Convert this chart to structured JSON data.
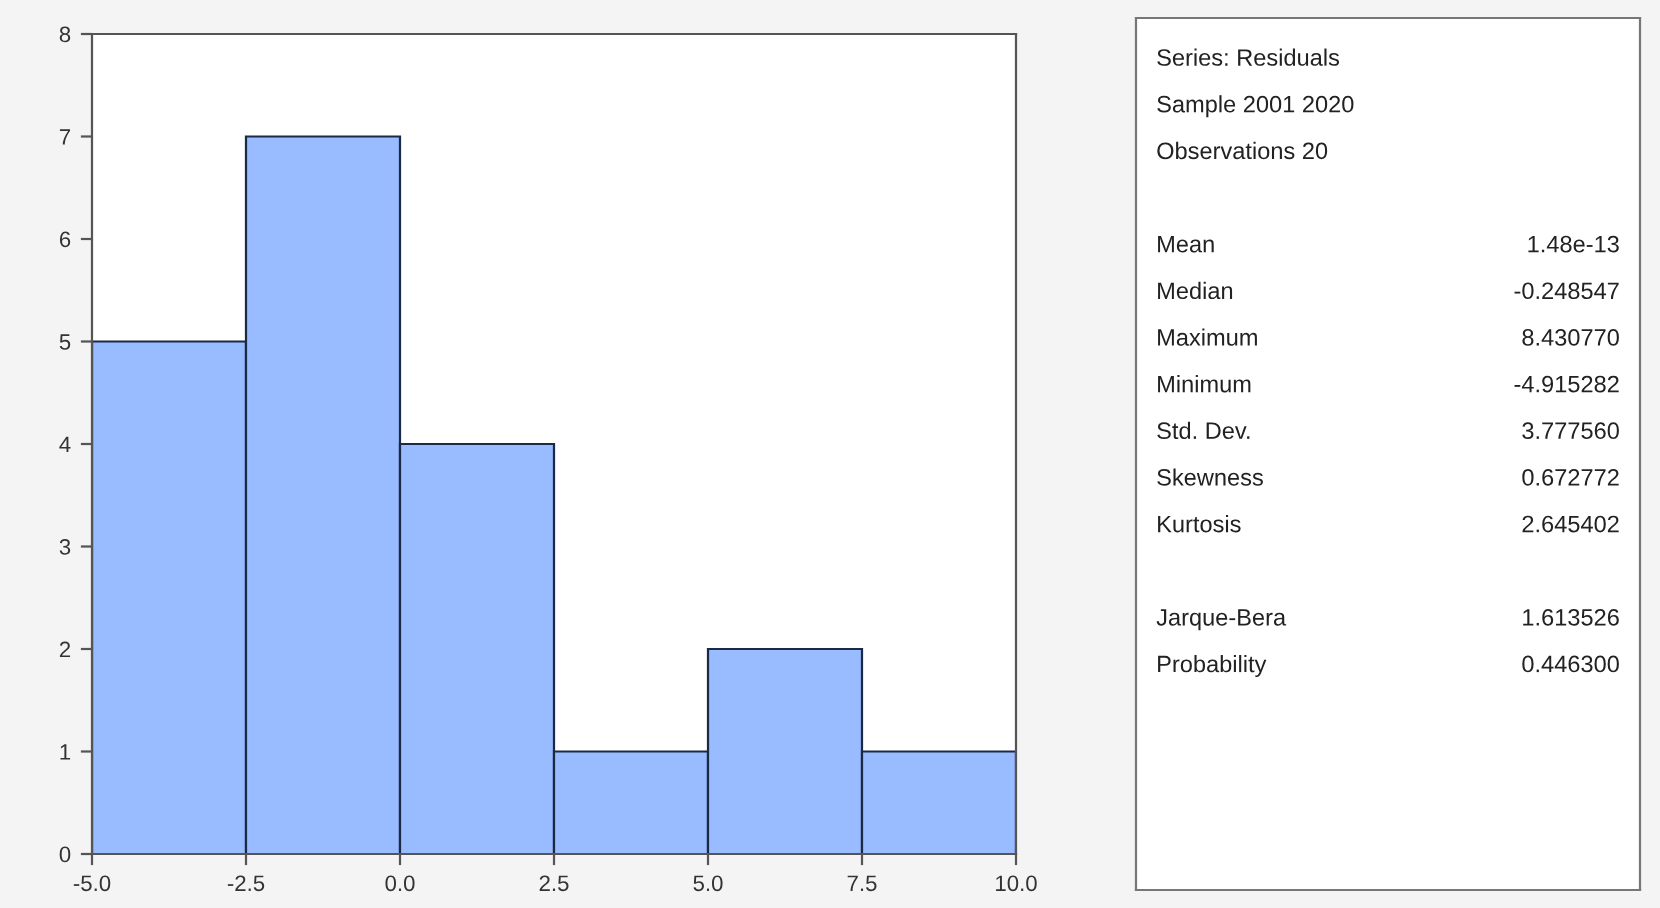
{
  "chart_data": [
    {
      "type": "histogram",
      "bins": [
        -5.0,
        -2.5,
        0.0,
        2.5,
        5.0,
        7.5,
        10.0
      ],
      "values": [
        5,
        7,
        4,
        1,
        2,
        1
      ],
      "color": "#99bbff",
      "xlim": [
        -5.0,
        10.0
      ],
      "xticks": [
        {
          "value": -5.0,
          "label": "-5.0"
        },
        {
          "value": -2.5,
          "label": "-2.5"
        },
        {
          "value": 0.0,
          "label": "0.0"
        },
        {
          "value": 2.5,
          "label": "2.5"
        },
        {
          "value": 5.0,
          "label": "5.0"
        },
        {
          "value": 7.5,
          "label": "7.5"
        },
        {
          "value": 10.0,
          "label": "10.0"
        }
      ],
      "ylim": [
        0,
        8
      ],
      "yticks": [
        0,
        1,
        2,
        3,
        4,
        5,
        6,
        7,
        8
      ],
      "grid": false
    },
    {
      "type": "other",
      "annotations": [
        "Series: Residuals",
        "Sample 2001 2020",
        "Observations 20",
        "Mean",
        "1.48e-13",
        "Median",
        "-0.248547",
        "Maximum",
        "8.430770",
        "Minimum",
        "-4.915282",
        "Std. Dev.",
        "3.777560",
        "Skewness",
        "0.672772",
        "Kurtosis",
        "2.645402",
        "Jarque-Bera",
        "1.613526",
        "Probability",
        "0.446300"
      ]
    }
  ]
}
